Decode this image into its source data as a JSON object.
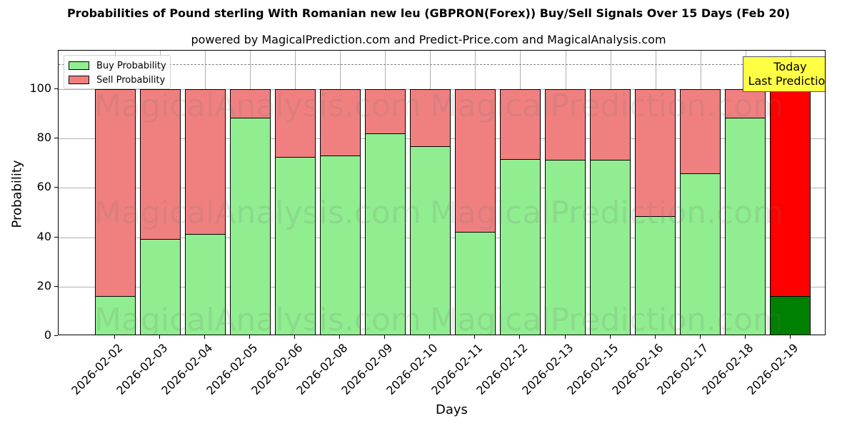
{
  "chart_data": {
    "type": "bar",
    "stacked": true,
    "title": "Probabilities of Pound sterling With Romanian new leu (GBPRON(Forex)) Buy/Sell Signals Over 15 Days (Feb 20)",
    "subtitle": "powered by MagicalPrediction.com and Predict-Price.com and MagicalAnalysis.com",
    "xlabel": "Days",
    "ylabel": "Probability",
    "ylim": [
      0,
      115
    ],
    "yticks": [
      0,
      20,
      40,
      60,
      80,
      100
    ],
    "grid": true,
    "legend_position": "upper left",
    "reference_line": {
      "y": 110,
      "style": "dashed",
      "color": "#808080"
    },
    "categories": [
      "2026-02-02",
      "2026-02-03",
      "2026-02-04",
      "2026-02-05",
      "2026-02-06",
      "2026-02-08",
      "2026-02-09",
      "2026-02-10",
      "2026-02-11",
      "2026-02-12",
      "2026-02-13",
      "2026-02-15",
      "2026-02-16",
      "2026-02-17",
      "2026-02-18",
      "2026-02-19"
    ],
    "series": [
      {
        "name": "Buy Probability",
        "color": "#90ee90",
        "values": [
          16.2,
          39.3,
          41.3,
          88.4,
          72.5,
          73.1,
          82.1,
          76.9,
          42.2,
          71.7,
          71.4,
          71.4,
          48.6,
          65.9,
          88.4,
          16.2
        ]
      },
      {
        "name": "Sell Probability",
        "color": "#f08080",
        "values": [
          83.8,
          60.7,
          58.7,
          11.6,
          27.5,
          26.9,
          17.9,
          23.1,
          57.8,
          28.3,
          28.6,
          28.6,
          51.4,
          34.1,
          11.6,
          83.8
        ]
      }
    ],
    "highlight": {
      "index": 15,
      "buy_color": "#008000",
      "sell_color": "#ff0000"
    },
    "annotation": {
      "line1": "Today",
      "line2": "Last Prediction",
      "background": "#ffff44"
    },
    "watermarks": [
      "MagicalAnalysis.com",
      "MagicalPrediction.com"
    ]
  }
}
